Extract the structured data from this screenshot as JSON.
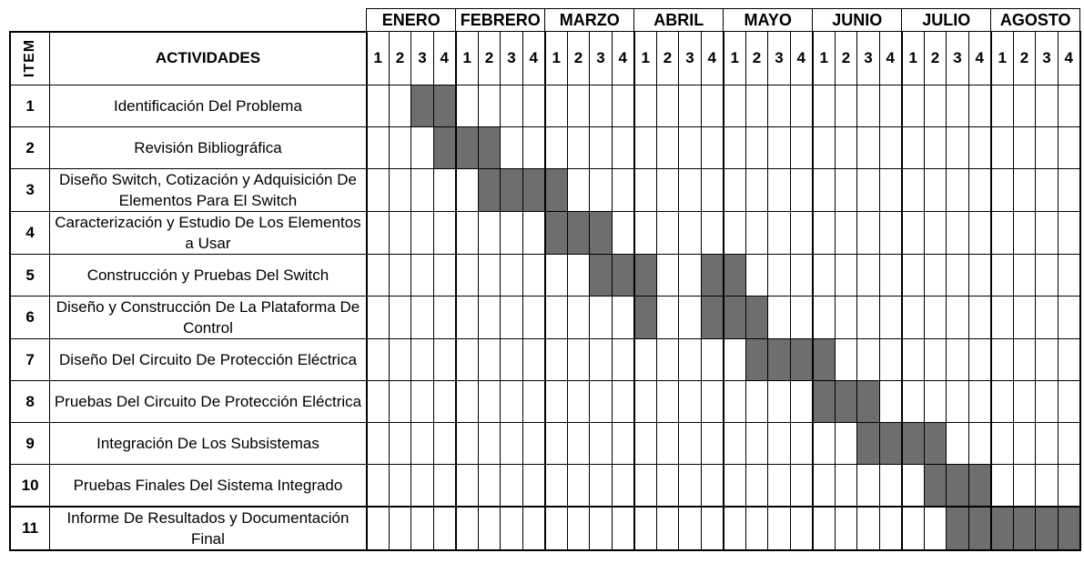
{
  "table": {
    "item_header": "ITEM",
    "activity_header": "ACTIVIDADES",
    "months": [
      "ENERO",
      "FEBRERO",
      "MARZO",
      "ABRIL",
      "MAYO",
      "JUNIO",
      "JULIO",
      "AGOSTO"
    ],
    "week_labels": [
      "1",
      "2",
      "3",
      "4"
    ],
    "fill_color": "#6f6d6d",
    "rows": [
      {
        "item": "1",
        "activity": "Identificación Del Problema",
        "active_weeks": [
          3,
          4
        ]
      },
      {
        "item": "2",
        "activity": "Revisión Bibliográfica",
        "active_weeks": [
          4,
          5,
          6
        ]
      },
      {
        "item": "3",
        "activity": "Diseño Switch, Cotización y Adquisición De Elementos Para El Switch",
        "active_weeks": [
          6,
          7,
          8,
          9
        ]
      },
      {
        "item": "4",
        "activity": "Caracterización y Estudio De Los Elementos a Usar",
        "active_weeks": [
          9,
          10,
          11
        ]
      },
      {
        "item": "5",
        "activity": "Construcción y Pruebas Del Switch",
        "active_weeks": [
          11,
          12,
          13,
          16,
          17
        ]
      },
      {
        "item": "6",
        "activity": "Diseño y Construcción De La Plataforma De Control",
        "active_weeks": [
          13,
          16,
          17,
          18
        ]
      },
      {
        "item": "7",
        "activity": "Diseño Del Circuito De Protección Eléctrica",
        "active_weeks": [
          18,
          19,
          20,
          21
        ]
      },
      {
        "item": "8",
        "activity": "Pruebas Del Circuito De Protección Eléctrica",
        "active_weeks": [
          21,
          22,
          23
        ]
      },
      {
        "item": "9",
        "activity": "Integración De Los Subsistemas",
        "active_weeks": [
          23,
          24,
          25,
          26
        ]
      },
      {
        "item": "10",
        "activity": "Pruebas Finales Del Sistema Integrado",
        "active_weeks": [
          26,
          27,
          28
        ]
      },
      {
        "item": "11",
        "activity": "Informe De Resultados y Documentación Final",
        "active_weeks": [
          27,
          28,
          29,
          30,
          31,
          32
        ]
      }
    ]
  }
}
